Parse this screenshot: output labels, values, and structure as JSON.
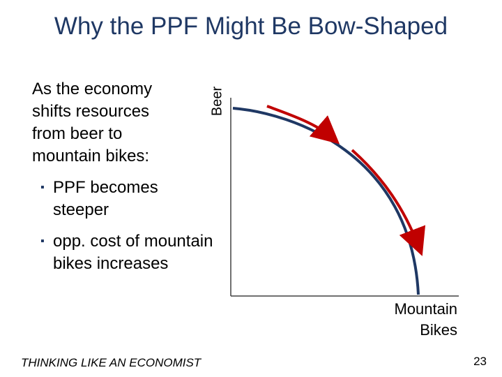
{
  "slide": {
    "title": "Why the PPF Might Be Bow-Shaped",
    "intro": "As the economy shifts resources from beer to mountain bikes:",
    "bullets": [
      "PPF becomes steeper",
      "opp. cost of mountain bikes increases"
    ],
    "footer": "THINKING LIKE AN ECONOMIST",
    "page_number": "23"
  },
  "diagram": {
    "y_axis_label": "Beer",
    "x_axis_label_line1": "Mountain",
    "x_axis_label_line2": "Bikes",
    "colors": {
      "ppf_curve": "#1f3864",
      "arrows": "#c00000",
      "axes": "#404040",
      "title": "#1f3864"
    }
  }
}
